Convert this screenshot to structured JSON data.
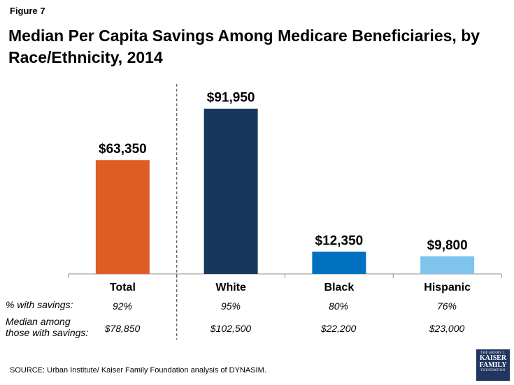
{
  "figure_label": "Figure 7",
  "chart_data": {
    "type": "bar",
    "title": "Median Per Capita Savings Among Medicare Beneficiaries, by Race/Ethnicity, 2014",
    "categories": [
      "Total",
      "White",
      "Black",
      "Hispanic"
    ],
    "values": [
      63350,
      91950,
      12350,
      9800
    ],
    "value_labels": [
      "$63,350",
      "$91,950",
      "$12,350",
      "$9,800"
    ],
    "colors": [
      "#e05c25",
      "#17375e",
      "#0070c0",
      "#7ec4ec"
    ],
    "xlabel": "",
    "ylabel": "",
    "ylim": [
      0,
      100000
    ],
    "grid": false,
    "divider_after_category": "Total"
  },
  "table": {
    "rows": [
      {
        "label_lines": [
          "% with savings:"
        ],
        "values": [
          "92%",
          "95%",
          "80%",
          "76%"
        ]
      },
      {
        "label_lines": [
          "Median among",
          "those with savings:"
        ],
        "values": [
          "$78,850",
          "$102,500",
          "$22,200",
          "$23,000"
        ]
      }
    ]
  },
  "source": "SOURCE: Urban Institute/ Kaiser Family Foundation analysis of DYNASIM.",
  "logo": {
    "line1": "THE HENRY J.",
    "line2": "KAISER",
    "line3": "FAMILY",
    "line4": "FOUNDATION"
  }
}
